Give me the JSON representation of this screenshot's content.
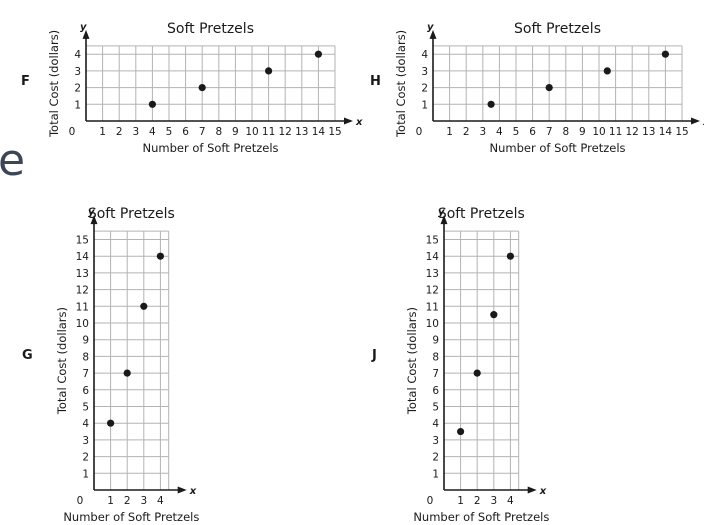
{
  "page": {
    "fragment_text": "e"
  },
  "chart_data": [
    {
      "type": "scatter",
      "option": "F",
      "title": "Soft Pretzels",
      "xlabel": "Number of Soft Pretzels",
      "ylabel": "Total Cost (dollars)",
      "x_axis_letter": "x",
      "y_axis_letter": "y",
      "origin_label": "0",
      "xlim": [
        0,
        15
      ],
      "ylim": [
        0,
        4.5
      ],
      "x_ticks": [
        "1",
        "2",
        "3",
        "4",
        "5",
        "6",
        "7",
        "8",
        "9",
        "10",
        "11",
        "12",
        "13",
        "14",
        "15"
      ],
      "y_ticks": [
        "1",
        "2",
        "3",
        "4"
      ],
      "grid": true,
      "points": [
        {
          "x": 4,
          "y": 1
        },
        {
          "x": 7,
          "y": 2
        },
        {
          "x": 11,
          "y": 3
        },
        {
          "x": 14,
          "y": 4
        }
      ]
    },
    {
      "type": "scatter",
      "option": "H",
      "title": "Soft Pretzels",
      "xlabel": "Number of Soft Pretzels",
      "ylabel": "Total Cost (dollars)",
      "x_axis_letter": "x",
      "y_axis_letter": "y",
      "origin_label": "0",
      "xlim": [
        0,
        15
      ],
      "ylim": [
        0,
        4.5
      ],
      "x_ticks": [
        "1",
        "2",
        "3",
        "4",
        "5",
        "6",
        "7",
        "8",
        "9",
        "10",
        "11",
        "12",
        "13",
        "14",
        "15"
      ],
      "y_ticks": [
        "1",
        "2",
        "3",
        "4"
      ],
      "grid": true,
      "points": [
        {
          "x": 3.5,
          "y": 1
        },
        {
          "x": 7,
          "y": 2
        },
        {
          "x": 10.5,
          "y": 3
        },
        {
          "x": 14,
          "y": 4
        }
      ]
    },
    {
      "type": "scatter",
      "option": "G",
      "title": "Soft Pretzels",
      "xlabel": "Number of Soft Pretzels",
      "ylabel": "Total Cost (dollars)",
      "x_axis_letter": "x",
      "y_axis_letter": "y",
      "origin_label": "0",
      "xlim": [
        0,
        4.5
      ],
      "ylim": [
        0,
        15.5
      ],
      "x_ticks": [
        "1",
        "2",
        "3",
        "4"
      ],
      "y_ticks": [
        "1",
        "2",
        "3",
        "4",
        "5",
        "6",
        "7",
        "8",
        "9",
        "10",
        "11",
        "12",
        "13",
        "14",
        "15"
      ],
      "grid": true,
      "points": [
        {
          "x": 1,
          "y": 4
        },
        {
          "x": 2,
          "y": 7
        },
        {
          "x": 3,
          "y": 11
        },
        {
          "x": 4,
          "y": 14
        }
      ]
    },
    {
      "type": "scatter",
      "option": "J",
      "title": "Soft Pretzels",
      "xlabel": "Number of Soft Pretzels",
      "ylabel": "Total Cost (dollars)",
      "x_axis_letter": "x",
      "y_axis_letter": "y",
      "origin_label": "0",
      "xlim": [
        0,
        4.5
      ],
      "ylim": [
        0,
        15.5
      ],
      "x_ticks": [
        "1",
        "2",
        "3",
        "4"
      ],
      "y_ticks": [
        "1",
        "2",
        "3",
        "4",
        "5",
        "6",
        "7",
        "8",
        "9",
        "10",
        "11",
        "12",
        "13",
        "14",
        "15"
      ],
      "grid": true,
      "points": [
        {
          "x": 1,
          "y": 3.5
        },
        {
          "x": 2,
          "y": 7
        },
        {
          "x": 3,
          "y": 10.5
        },
        {
          "x": 4,
          "y": 14
        }
      ]
    }
  ]
}
